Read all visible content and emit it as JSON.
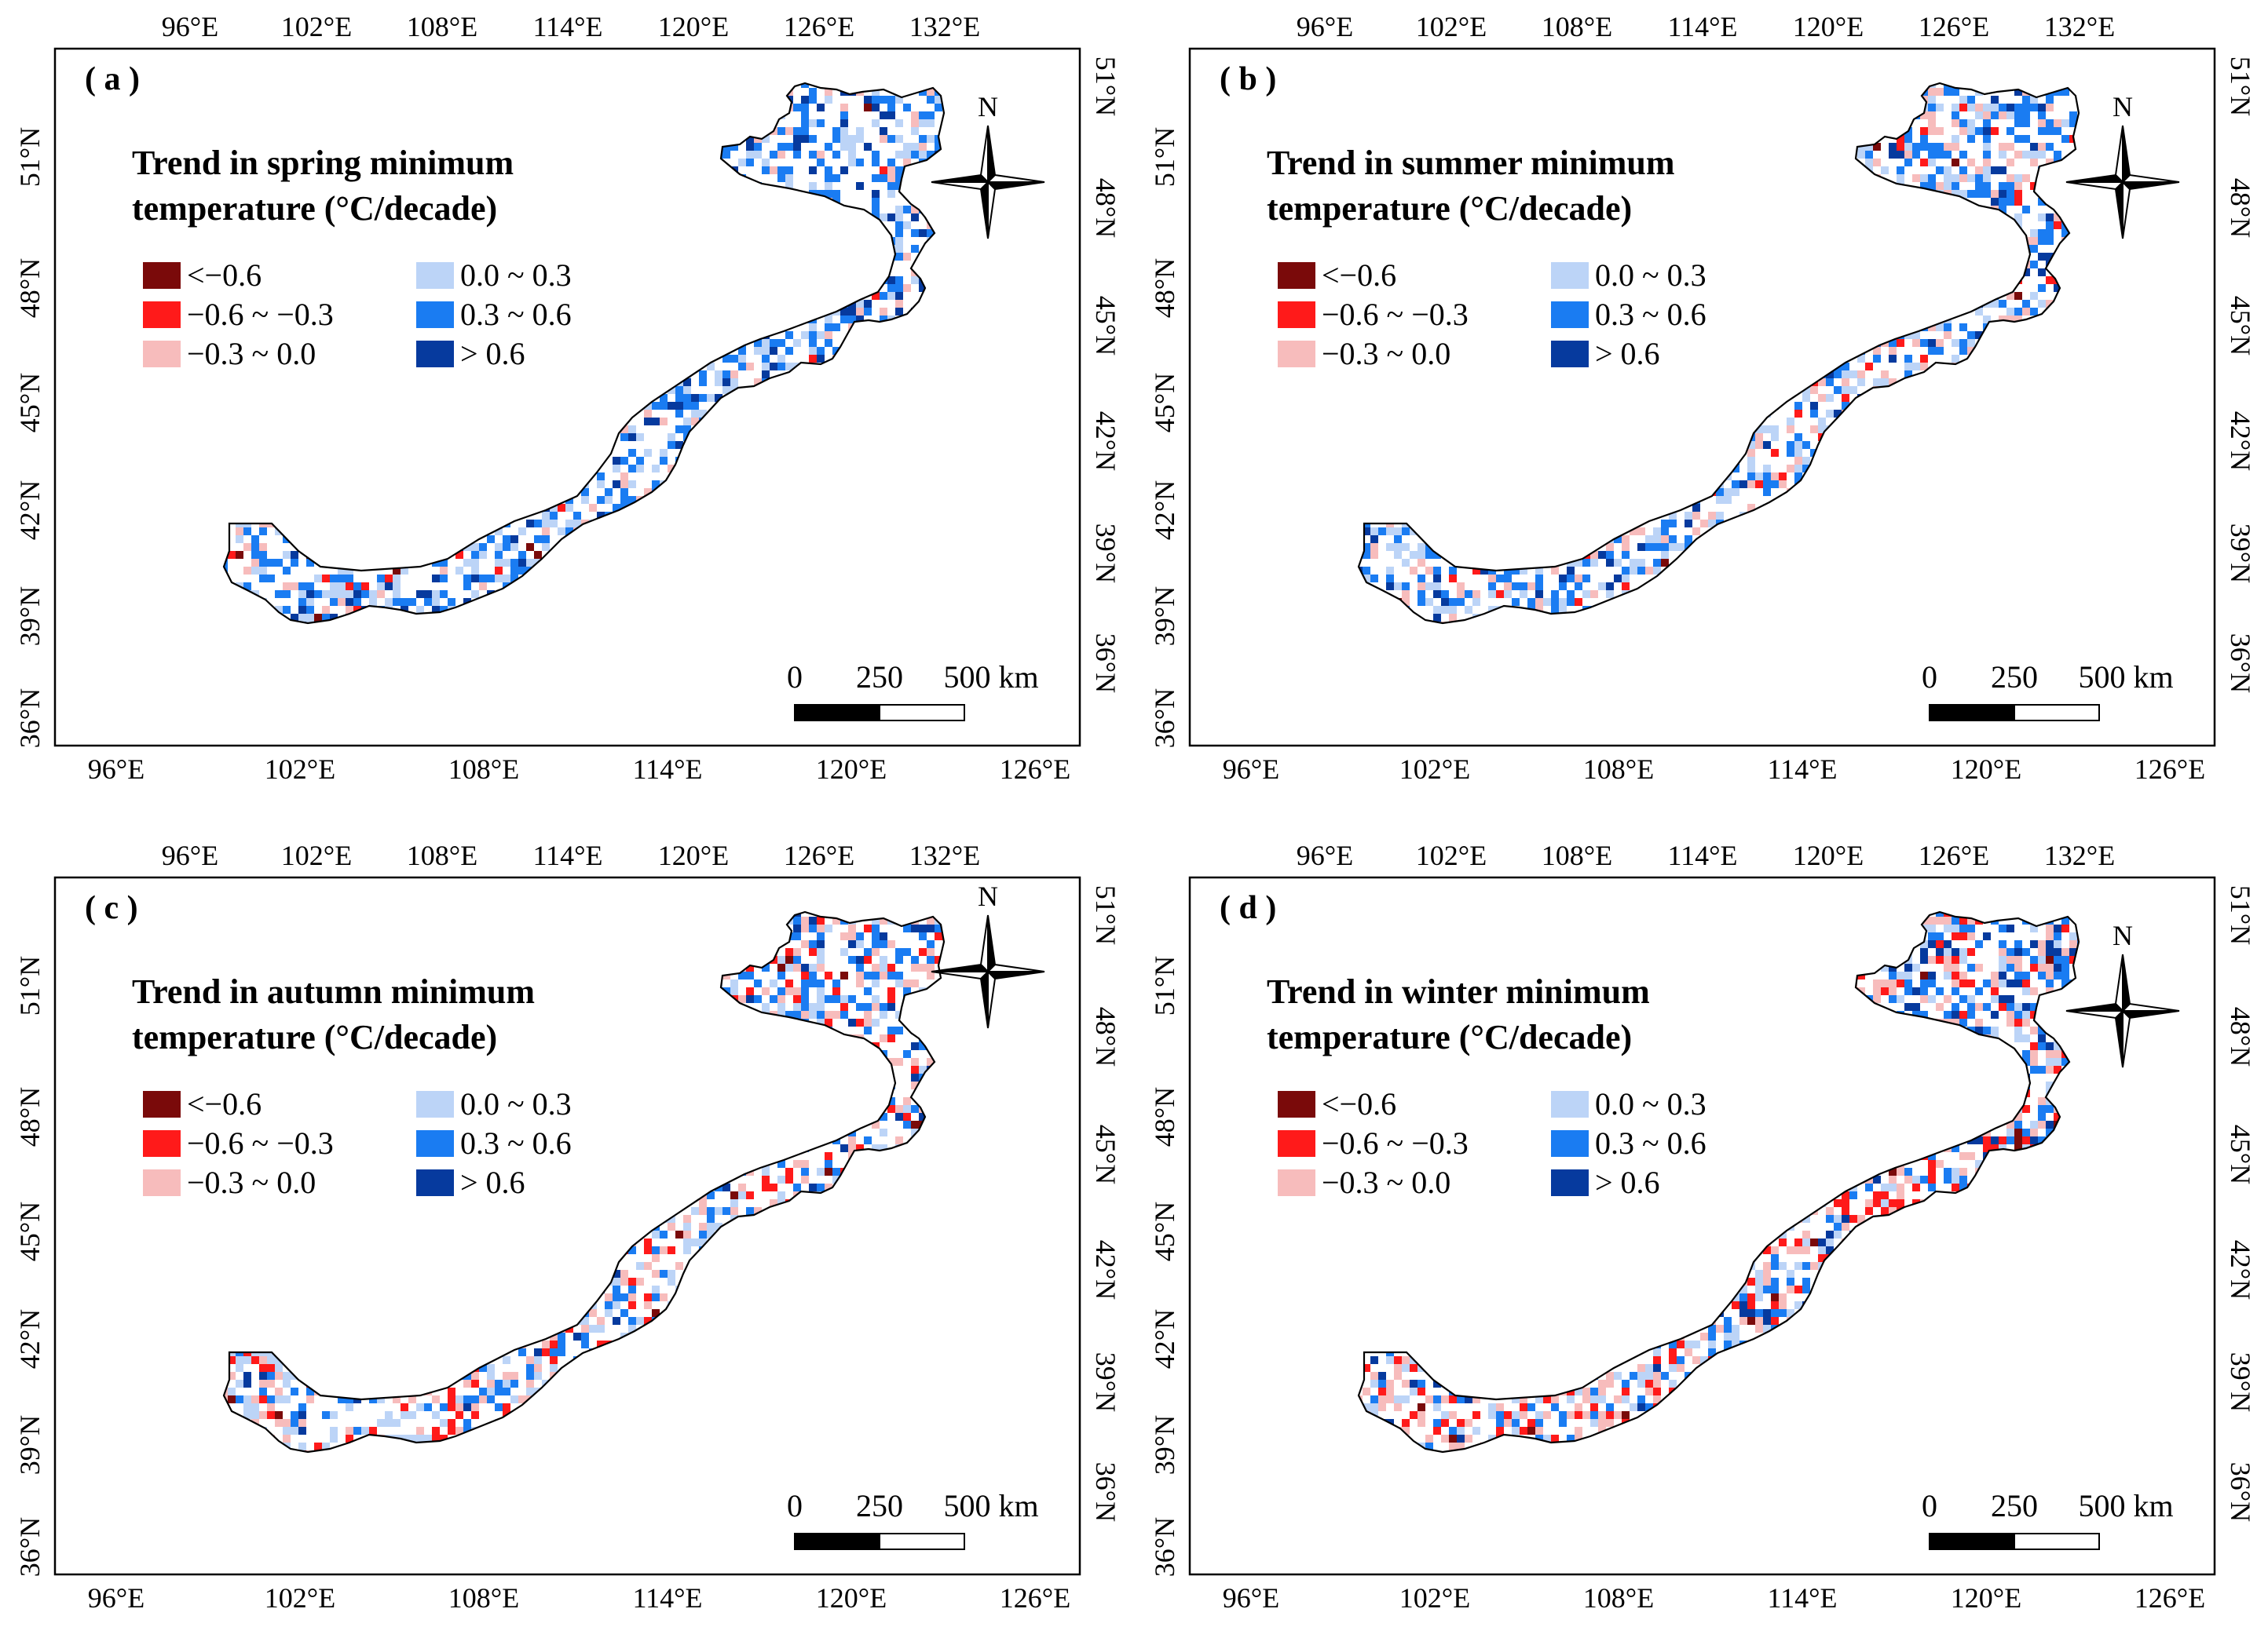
{
  "axes": {
    "top_labels": [
      "96°E",
      "102°E",
      "108°E",
      "114°E",
      "120°E",
      "126°E",
      "132°E"
    ],
    "bottom_labels": [
      "96°E",
      "102°E",
      "108°E",
      "114°E",
      "120°E",
      "126°E"
    ],
    "left_labels": [
      "51°N",
      "48°N",
      "45°N",
      "42°N",
      "39°N",
      "36°N"
    ],
    "right_labels": [
      "51°N",
      "48°N",
      "45°N",
      "42°N",
      "39°N",
      "36°N"
    ]
  },
  "panels": [
    {
      "tag": "( a )",
      "title_line1": "Trend in spring minimum",
      "title_line2": "temperature (°C/decade)",
      "weights": [
        0.01,
        0.03,
        0.12,
        0.34,
        0.38,
        0.12
      ]
    },
    {
      "tag": "( b )",
      "title_line1": "Trend in summer minimum",
      "title_line2": "temperature (°C/decade)",
      "weights": [
        0.01,
        0.06,
        0.25,
        0.3,
        0.3,
        0.08
      ]
    },
    {
      "tag": "( c )",
      "title_line1": "Trend in autumn minimum",
      "title_line2": "temperature (°C/decade)",
      "weights": [
        0.02,
        0.14,
        0.3,
        0.26,
        0.22,
        0.06
      ]
    },
    {
      "tag": "( d )",
      "title_line1": "Trend in winter minimum",
      "title_line2": "temperature (°C/decade)",
      "weights": [
        0.02,
        0.17,
        0.3,
        0.22,
        0.22,
        0.07
      ]
    }
  ],
  "legend": [
    {
      "label": "<−0.6",
      "color": "#7a0a0a"
    },
    {
      "label": "−0.6 ~ −0.3",
      "color": "#ff1a1a"
    },
    {
      "label": "−0.3 ~ 0.0",
      "color": "#f7bcbc"
    },
    {
      "label": "0.0 ~ 0.3",
      "color": "#bcd4f7"
    },
    {
      "label": "0.3 ~ 0.6",
      "color": "#1a7cf2"
    },
    {
      "label": "> 0.6",
      "color": "#063a9e"
    }
  ],
  "north_label": "N",
  "scalebar": {
    "ticks": [
      "0",
      "250",
      "500 km"
    ]
  }
}
